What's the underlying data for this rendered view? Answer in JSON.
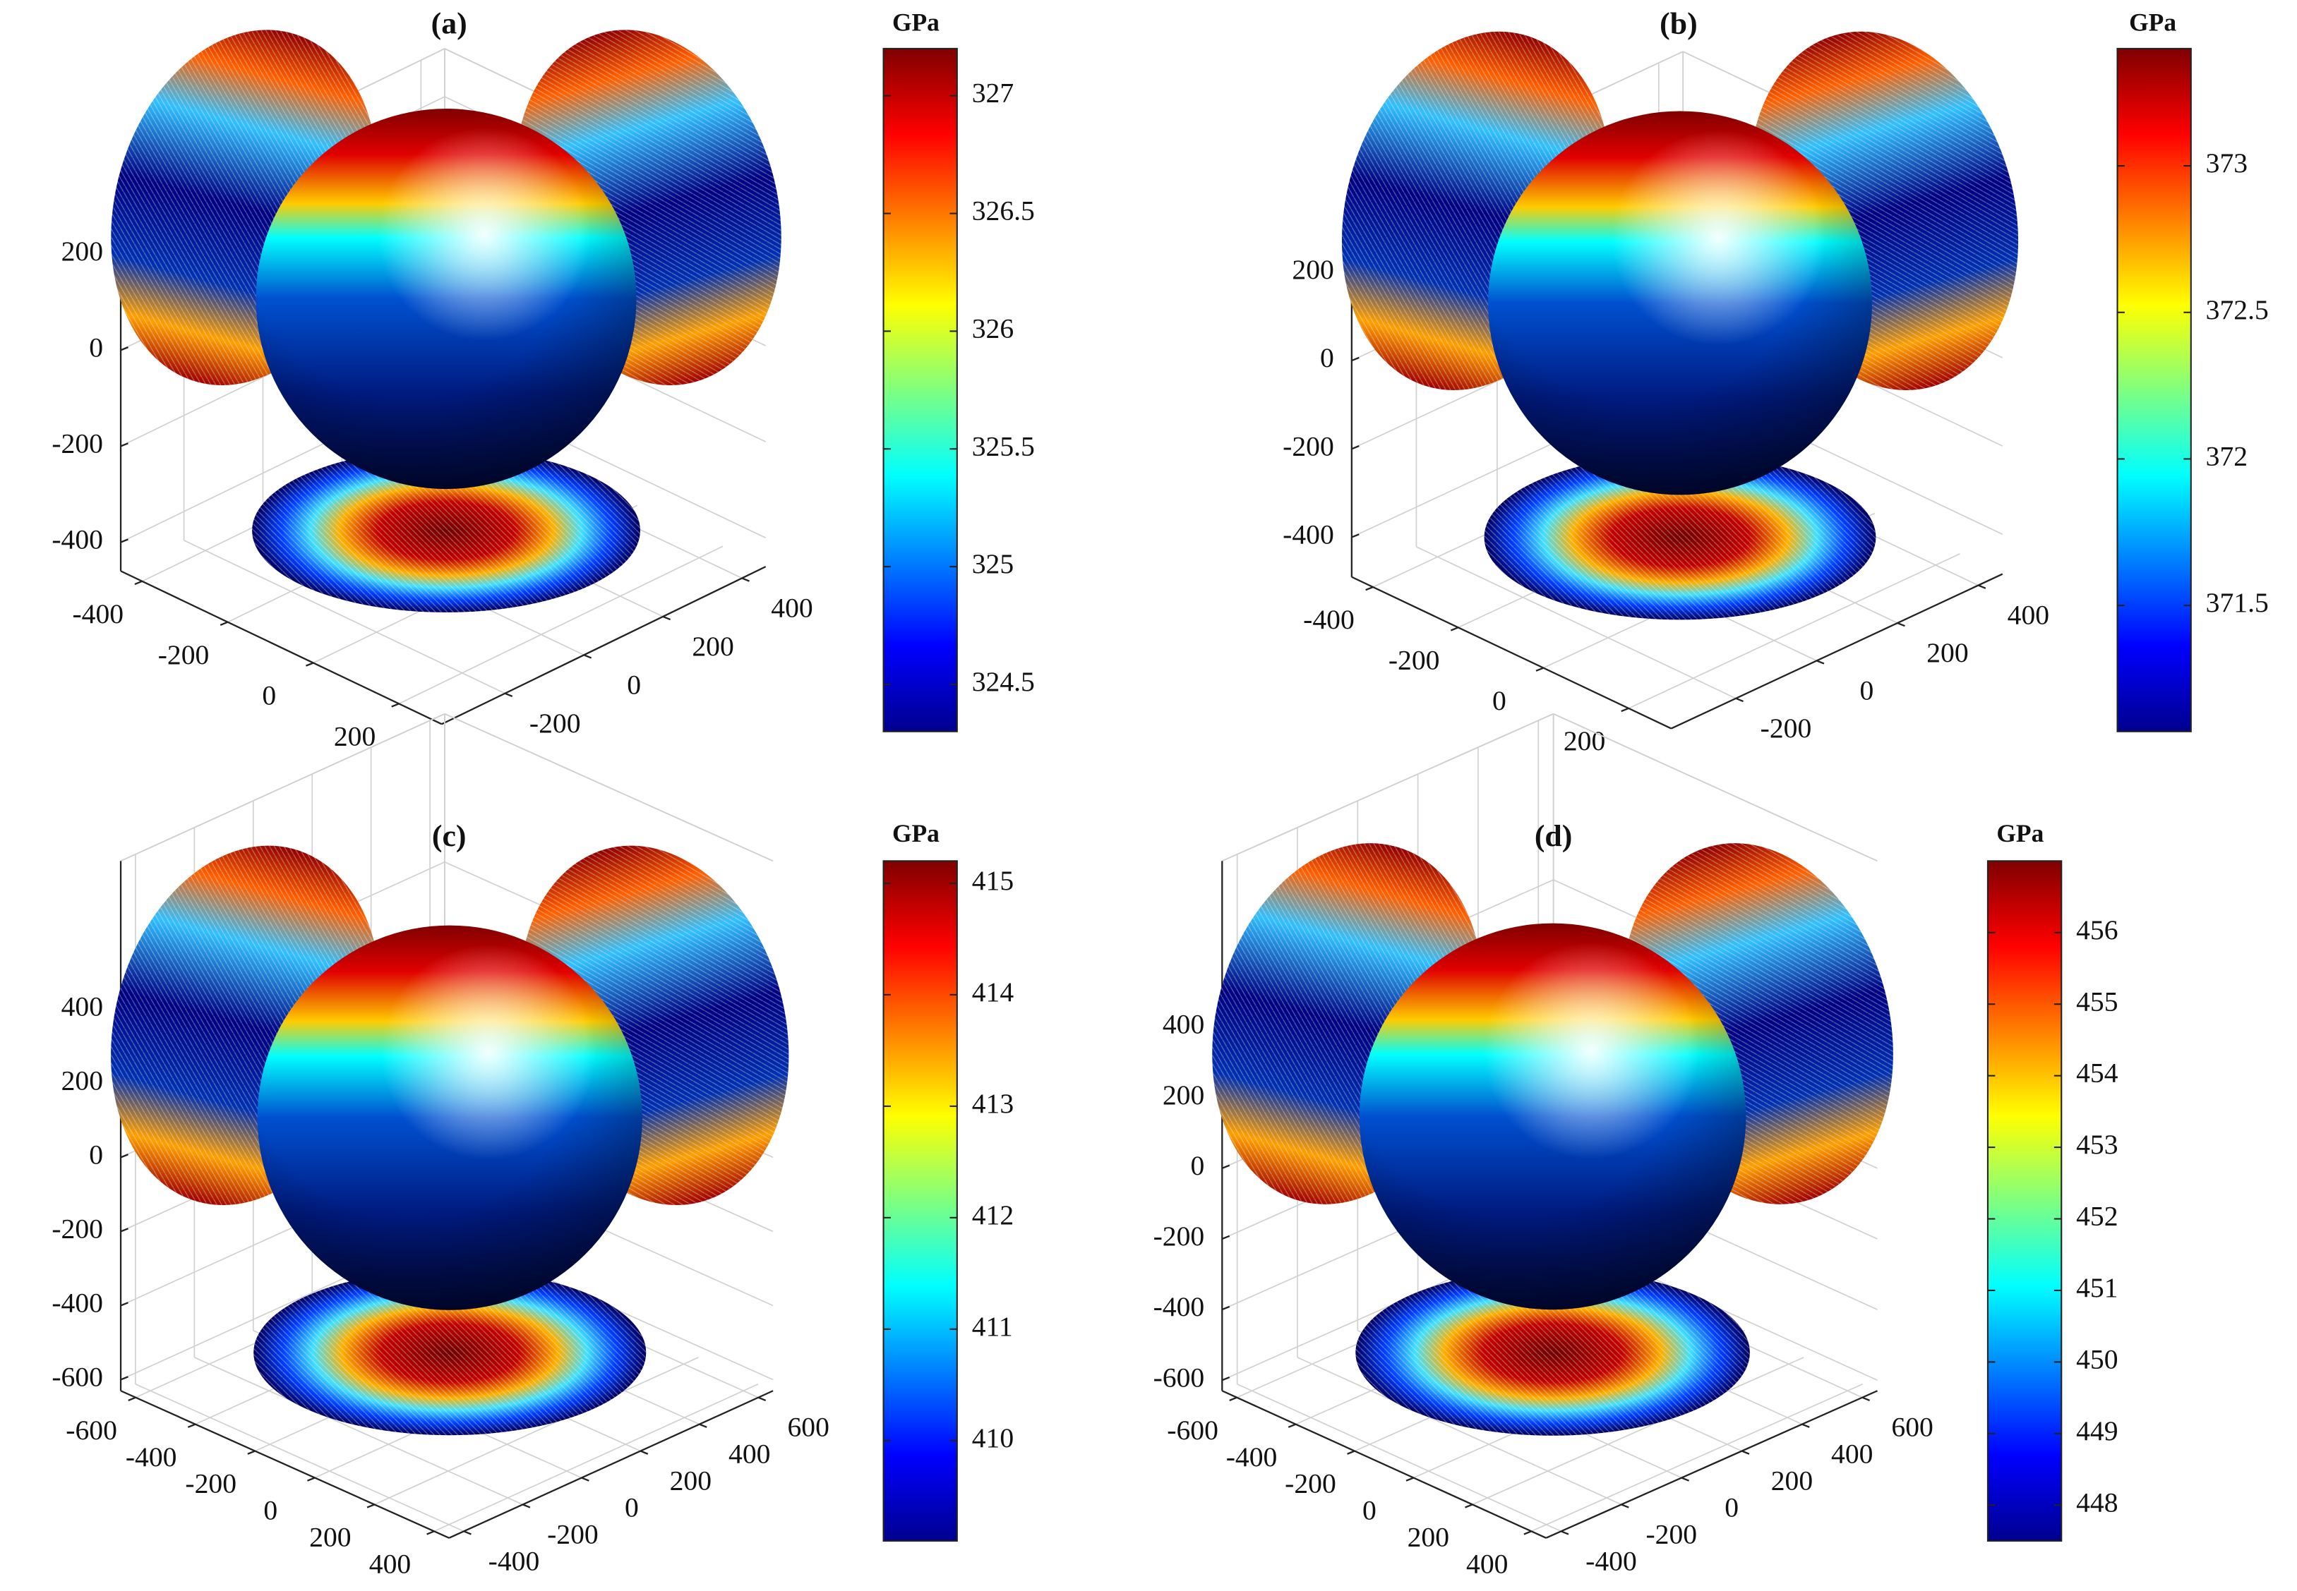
{
  "chart_data": [
    {
      "type": "surface",
      "title": "(a)",
      "colorbar_label": "GPa",
      "colormap": "jet",
      "clim": [
        324.3,
        327.2
      ],
      "cticks": [
        324.5,
        325,
        325.5,
        326,
        326.5,
        327
      ],
      "xlim": [
        -450,
        300
      ],
      "ylim": [
        -360,
        460
      ],
      "zlim": [
        -460,
        300
      ],
      "xticks": [
        -400,
        -200,
        0,
        200
      ],
      "yticks": [
        -200,
        0,
        200,
        400
      ],
      "zticks": [
        -400,
        -200,
        0,
        200
      ]
    },
    {
      "type": "surface",
      "title": "(b)",
      "colorbar_label": "GPa",
      "colormap": "jet",
      "clim": [
        371.07,
        373.4
      ],
      "cticks": [
        371.5,
        372,
        372.5,
        373
      ],
      "xlim": [
        -450,
        300
      ],
      "ylim": [
        -360,
        460
      ],
      "zlim": [
        -490,
        350
      ],
      "xticks": [
        -400,
        -200,
        0,
        200
      ],
      "yticks": [
        -200,
        0,
        200,
        400
      ],
      "zticks": [
        -400,
        -200,
        0,
        200
      ]
    },
    {
      "type": "surface",
      "title": "(c)",
      "colorbar_label": "GPa",
      "colormap": "jet",
      "clim": [
        409.1,
        415.2
      ],
      "cticks": [
        410,
        411,
        412,
        413,
        414,
        415
      ],
      "xlim": [
        -650,
        450
      ],
      "ylim": [
        -450,
        650
      ],
      "zlim": [
        -630,
        800
      ],
      "xticks": [
        -600,
        -400,
        -200,
        0,
        200,
        400
      ],
      "yticks": [
        -400,
        -200,
        0,
        200,
        400,
        600
      ],
      "zticks": [
        -600,
        -400,
        -200,
        0,
        200,
        400
      ]
    },
    {
      "type": "surface",
      "title": "(d)",
      "colorbar_label": "GPa",
      "colormap": "jet",
      "clim": [
        447.5,
        457
      ],
      "cticks": [
        448,
        449,
        450,
        451,
        452,
        453,
        454,
        455,
        456
      ],
      "xlim": [
        -650,
        450
      ],
      "ylim": [
        -450,
        650
      ],
      "zlim": [
        -630,
        870
      ],
      "xticks": [
        -600,
        -400,
        -200,
        0,
        200,
        400
      ],
      "yticks": [
        -400,
        -200,
        0,
        200,
        400,
        600
      ],
      "zticks": [
        -600,
        -400,
        -200,
        0,
        200,
        400
      ]
    }
  ]
}
